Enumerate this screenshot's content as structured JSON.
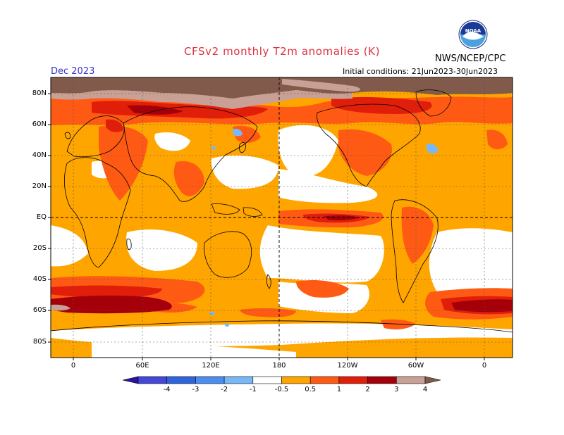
{
  "title": "CFSv2 monthly T2m anomalies (K)",
  "valid_month": "Dec 2023",
  "initial_conditions": "Initial conditions: 21Jun2023-30Jun2023",
  "organization": "NWS/NCEP/CPC",
  "logo_text": "NOAA",
  "y_axis_labels": [
    "80N",
    "60N",
    "40N",
    "20N",
    "EQ",
    "20S",
    "40S",
    "60S",
    "80S"
  ],
  "x_axis_labels": [
    "0",
    "60E",
    "120E",
    "180",
    "120W",
    "60W",
    "0"
  ],
  "legend": {
    "tick_labels": [
      "-4",
      "-3",
      "-2",
      "-1",
      "-0.5",
      "0.5",
      "1",
      "2",
      "3",
      "4"
    ],
    "colors": [
      "#2a14a0",
      "#4646d8",
      "#2e64dc",
      "#4b8ef0",
      "#78b8f8",
      "#ffffff",
      "#ffa500",
      "#ff5a14",
      "#e01e0a",
      "#a5000a",
      "#c8a096",
      "#825a4b"
    ]
  },
  "colors": {
    "title": "#e0303c",
    "valid_month": "#3535c8",
    "land_outline": "#000000"
  }
}
